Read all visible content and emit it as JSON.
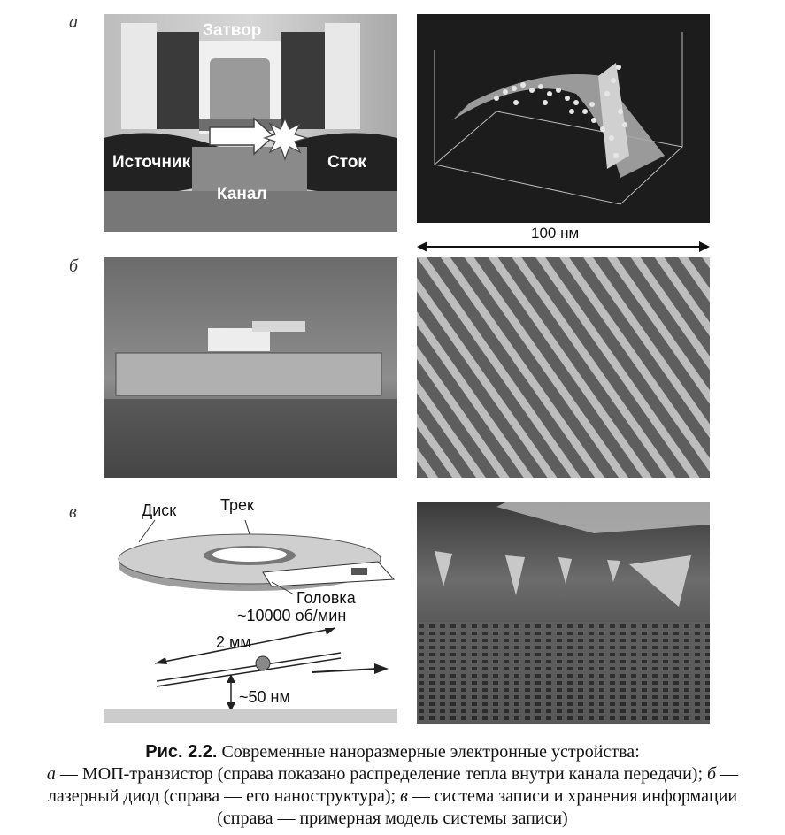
{
  "panels": {
    "a": {
      "letter": "а",
      "labels": {
        "gate": "Затвор",
        "source": "Источник",
        "drain": "Сток",
        "channel": "Канал"
      },
      "scale_label": "100 нм"
    },
    "b": {
      "letter": "б"
    },
    "v": {
      "letter": "в",
      "labels": {
        "disk": "Диск",
        "track": "Трек",
        "head": "Головка",
        "rpm": "~10000 об/мин",
        "length": "2 мм",
        "gap": "~50 нм"
      }
    }
  },
  "caption": {
    "fig_label": "Рис. 2.2.",
    "title": "Современные наноразмерные электронные устройства:",
    "a_letter": "а",
    "a_text": "— МОП-транзистор (справа показано распределение тепла внутри канала передачи);",
    "b_letter": "б",
    "b_text": "— лазерный диод (справа — его наноструктура);",
    "v_letter": "в",
    "v_text": "— система записи и хранения информации (справа — примерная модель системы записи)"
  },
  "colors": {
    "dark_bg": "#2a2a2a",
    "gray": "#8c8c8c",
    "light": "#e6e6e6"
  }
}
